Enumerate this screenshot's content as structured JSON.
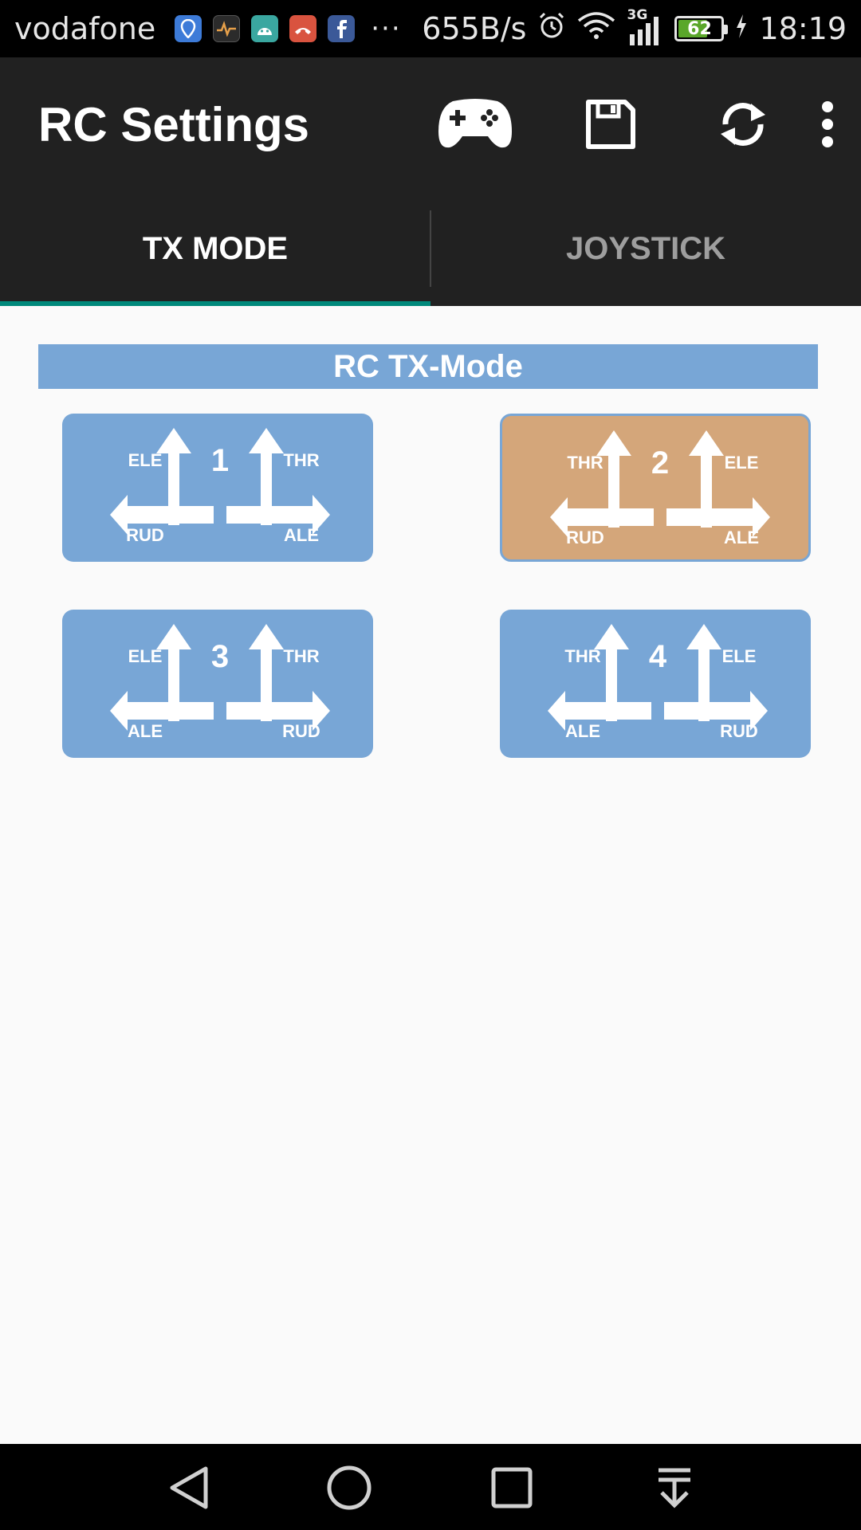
{
  "status_bar": {
    "carrier": "vodafone",
    "more": "···",
    "net_speed": "655B/s",
    "network_type": "3G",
    "battery": "62",
    "time": "18:19"
  },
  "app_bar": {
    "title": "RC Settings",
    "actions": [
      "gamepad-icon",
      "save-icon",
      "refresh-icon",
      "more-vert-icon"
    ]
  },
  "tabs": [
    {
      "label": "TX MODE",
      "active": true
    },
    {
      "label": "JOYSTICK",
      "active": false
    }
  ],
  "section": {
    "title": "RC TX-Mode"
  },
  "modes": [
    {
      "number": "1",
      "top_left": "ELE",
      "top_right": "THR",
      "bottom_left": "RUD",
      "bottom_right": "ALE",
      "selected": false
    },
    {
      "number": "2",
      "top_left": "THR",
      "top_right": "ELE",
      "bottom_left": "RUD",
      "bottom_right": "ALE",
      "selected": true
    },
    {
      "number": "3",
      "top_left": "ELE",
      "top_right": "THR",
      "bottom_left": "ALE",
      "bottom_right": "RUD",
      "selected": false
    },
    {
      "number": "4",
      "top_left": "THR",
      "top_right": "ELE",
      "bottom_left": "ALE",
      "bottom_right": "RUD",
      "selected": false
    }
  ],
  "colors": {
    "mode_card": "#78a6d6",
    "mode_selected": "#d4a67a",
    "tab_indicator": "#00897b",
    "app_bar": "#212121"
  }
}
